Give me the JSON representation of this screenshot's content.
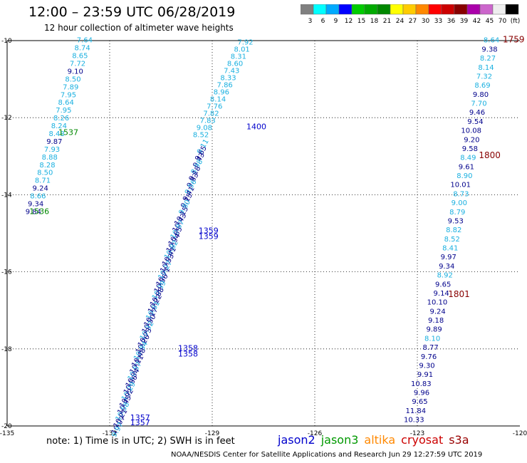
{
  "header": {
    "title": "12:00 – 23:59 UTC 06/28/2019",
    "subtitle": "12 hour collection of altimeter wave heights"
  },
  "footer": {
    "note": "note: 1) Time is in UTC; 2) SWH is in feet",
    "credit": "NOAA/NESDIS Center for Satellite Applications and Research    Jun 29 12:27:59 UTC 2019"
  },
  "legend": {
    "satellites": [
      {
        "name": "jason2",
        "color": "#0000cc"
      },
      {
        "name": "jason3",
        "color": "#009900"
      },
      {
        "name": "altika",
        "color": "#ff8800"
      },
      {
        "name": "cryosat",
        "color": "#cc0000"
      },
      {
        "name": "s3a",
        "color": "#990000"
      }
    ],
    "colorbar": {
      "colors": [
        "#808080",
        "#00ffff",
        "#00aaff",
        "#0000ff",
        "#00cc00",
        "#00aa00",
        "#008800",
        "#ffff00",
        "#ffcc00",
        "#ff8800",
        "#ff0000",
        "#cc0000",
        "#880000",
        "#aa00aa",
        "#cc66cc",
        "#eeeeee",
        "#000000"
      ],
      "labels": [
        "3",
        "6",
        "9",
        "12",
        "15",
        "18",
        "21",
        "24",
        "27",
        "30",
        "33",
        "36",
        "39",
        "42",
        "45",
        "70",
        "(ft)"
      ]
    }
  },
  "map": {
    "lon_ticks": [
      "-135",
      "-132",
      "-129",
      "-126",
      "-123",
      "-120"
    ],
    "lat_ticks": [
      "-10",
      "-12",
      "-14",
      "-16",
      "-18",
      "-20"
    ],
    "track_colors": {
      "light": "#1ab0e0",
      "dark": "#00008b",
      "time_green": "#008800",
      "time_blue": "#0000cc",
      "time_red": "#880000"
    },
    "track_a": {
      "values": [
        "7.64",
        "8.74",
        "8.65",
        "7.72",
        "9.10",
        "8.50",
        "7.89",
        "7.95",
        "8.64",
        "7.95",
        "8.26",
        "8.24",
        "8.48",
        "9.87",
        "7.93",
        "8.88",
        "8.28",
        "8.50",
        "8.71",
        "9.24",
        "8.66",
        "9.34",
        "9.84"
      ],
      "dark": [
        "9.10",
        "9.87",
        "9.24",
        "9.34",
        "9.84"
      ],
      "time_labels": [
        "1537",
        "1536"
      ]
    },
    "track_b_top": {
      "values": [
        "7.92",
        "8.01",
        "8.31",
        "8.60",
        "7.43",
        "8.33",
        "7.86",
        "8.96",
        "8.14",
        "7.76",
        "7.82",
        "7.83",
        "9.08",
        "8.52"
      ],
      "time_labels": [
        "1400"
      ]
    },
    "track_b_mid": {
      "values": [
        "9.11",
        "9.65",
        "9.43",
        "8.98",
        "9.18",
        "9.83",
        "9.56",
        "9.41",
        "9.15",
        "9.80",
        "10.15",
        "10.43",
        "10.87",
        "10.65",
        "10.94",
        "10.82",
        "10.41",
        "10.53",
        "10.27",
        "10.71",
        "10.56",
        "10.39",
        "10.88",
        "10.22",
        "10.61",
        "10.17",
        "10.50",
        "10.32",
        "10.73",
        "10.26",
        "10.84",
        "10.48",
        "10.11",
        "10.57",
        "10.34",
        "10.66",
        "10.29",
        "10.92",
        "10.45",
        "10.58",
        "10.21",
        "10.07",
        "9.97"
      ],
      "time_labels": [
        "1359",
        "1359",
        "1358",
        "1358",
        "1357",
        "1357"
      ]
    },
    "track_c": {
      "values": [
        "8.64",
        "9.38",
        "8.27",
        "8.14",
        "7.32",
        "8.69",
        "9.80",
        "7.70",
        "9.46",
        "9.54",
        "10.08",
        "9.20",
        "9.58",
        "8.49",
        "9.61",
        "8.90",
        "10.01",
        "8.73",
        "9.00",
        "8.79",
        "9.53",
        "8.82",
        "8.52",
        "8.41",
        "9.97",
        "9.34",
        "8.92",
        "9.65",
        "9.14",
        "10.10",
        "9.24",
        "9.18",
        "9.89",
        "8.10",
        "8.77",
        "9.76",
        "9.30",
        "9.91",
        "10.83",
        "9.96",
        "9.65",
        "11.84",
        "10.33"
      ],
      "dark": [
        "9.38",
        "9.80",
        "9.46",
        "9.54",
        "10.08",
        "9.20",
        "9.58",
        "9.61",
        "10.01",
        "9.53",
        "9.97",
        "9.34",
        "9.65",
        "9.14",
        "10.10",
        "9.24",
        "9.18",
        "9.89",
        "8.77",
        "9.76",
        "9.30",
        "9.91",
        "10.83",
        "9.96",
        "9.65",
        "11.84",
        "10.33"
      ],
      "time_labels": [
        "1759",
        "1800",
        "1801"
      ]
    }
  }
}
